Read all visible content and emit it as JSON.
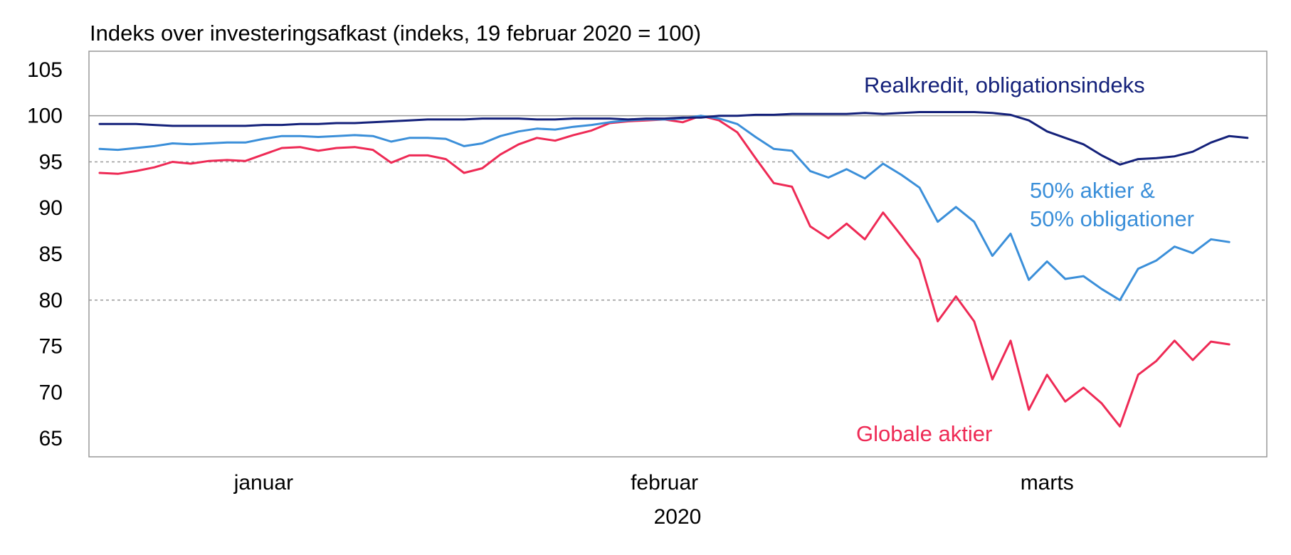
{
  "chart_data": {
    "type": "line",
    "title": "Indeks over investeringsafkast (indeks, 19 februar 2020 = 100)",
    "xlabel": "2020",
    "ylabel": "",
    "ylim": [
      63,
      107
    ],
    "yticks": [
      105,
      100,
      95,
      90,
      85,
      80,
      75,
      70,
      65
    ],
    "reference_lines": [
      {
        "value": 100,
        "style": "solid"
      },
      {
        "value": 95,
        "style": "dashed"
      },
      {
        "value": 80,
        "style": "dashed"
      }
    ],
    "grid": false,
    "x_tick_labels": [
      {
        "label": "januar",
        "index": 9
      },
      {
        "label": "februar",
        "index": 31
      },
      {
        "label": "marts",
        "index": 52
      }
    ],
    "colors": {
      "realkredit": "#14217a",
      "mixed": "#3b8fd9",
      "globale": "#ee2a55",
      "reference": "#999999",
      "frame": "#999999"
    },
    "series": [
      {
        "name": "Realkredit, obligationsindeks",
        "label_lines": [
          "Realkredit, obligationsindeks"
        ],
        "color_key": "realkredit",
        "values": [
          99.1,
          99.1,
          99.1,
          99.0,
          98.9,
          98.9,
          98.9,
          98.9,
          98.9,
          99.0,
          99.0,
          99.1,
          99.1,
          99.2,
          99.2,
          99.3,
          99.4,
          99.5,
          99.6,
          99.6,
          99.6,
          99.7,
          99.7,
          99.7,
          99.6,
          99.6,
          99.7,
          99.7,
          99.7,
          99.6,
          99.7,
          99.7,
          99.8,
          99.8,
          100.0,
          100.0,
          100.1,
          100.1,
          100.2,
          100.2,
          100.2,
          100.2,
          100.3,
          100.2,
          100.3,
          100.4,
          100.4,
          100.4,
          100.4,
          100.3,
          100.1,
          99.5,
          98.3,
          97.6,
          96.9,
          95.7,
          94.7,
          95.3,
          95.4,
          95.6,
          96.1,
          97.1,
          97.8,
          97.6
        ]
      },
      {
        "name": "50% aktier & 50% obligationer",
        "label_lines": [
          "50% aktier &",
          "50% obligationer"
        ],
        "color_key": "mixed",
        "values": [
          96.4,
          96.3,
          96.5,
          96.7,
          97.0,
          96.9,
          97.0,
          97.1,
          97.1,
          97.5,
          97.8,
          97.8,
          97.7,
          97.8,
          97.9,
          97.8,
          97.2,
          97.6,
          97.6,
          97.5,
          96.7,
          97.0,
          97.8,
          98.3,
          98.6,
          98.5,
          98.8,
          99.0,
          99.3,
          99.5,
          99.6,
          99.6,
          99.7,
          100.0,
          99.7,
          99.1,
          97.7,
          96.4,
          96.2,
          94.0,
          93.3,
          94.2,
          93.2,
          94.8,
          93.6,
          92.2,
          88.5,
          90.1,
          88.5,
          84.8,
          87.2,
          82.2,
          84.2,
          82.3,
          82.6,
          81.2,
          80.0,
          83.4,
          84.3,
          85.8,
          85.1,
          86.6,
          86.3
        ]
      },
      {
        "name": "Globale aktier",
        "label_lines": [
          "Globale aktier"
        ],
        "color_key": "globale",
        "values": [
          93.8,
          93.7,
          94.0,
          94.4,
          95.0,
          94.8,
          95.1,
          95.2,
          95.1,
          95.8,
          96.5,
          96.6,
          96.2,
          96.5,
          96.6,
          96.3,
          94.9,
          95.7,
          95.7,
          95.3,
          93.8,
          94.3,
          95.8,
          96.9,
          97.6,
          97.3,
          97.9,
          98.4,
          99.2,
          99.4,
          99.5,
          99.6,
          99.3,
          100.0,
          99.5,
          98.2,
          95.4,
          92.7,
          92.3,
          88.0,
          86.7,
          88.3,
          86.6,
          89.5,
          87.0,
          84.4,
          77.7,
          80.4,
          77.7,
          71.4,
          75.6,
          68.1,
          71.9,
          69.0,
          70.5,
          68.8,
          66.3,
          71.9,
          73.4,
          75.6,
          73.5,
          75.5,
          75.2
        ]
      }
    ]
  }
}
